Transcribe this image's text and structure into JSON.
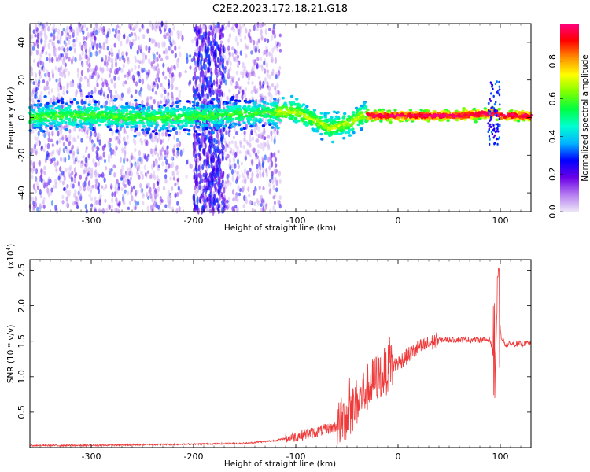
{
  "title": "C2E2.2023.172.18.21.G18",
  "chart_data": [
    {
      "type": "heatmap",
      "xlabel": "Height of straight line (km)",
      "ylabel": "Frequency (Hz)",
      "xlim": [
        -360,
        130
      ],
      "ylim": [
        -50,
        50
      ],
      "x_ticks": [
        -300,
        -200,
        -100,
        0,
        100
      ],
      "y_ticks": [
        -40,
        -20,
        0,
        20,
        40
      ],
      "colorbar": {
        "label": "Normalized spectral amplitude",
        "range": [
          0.0,
          1.0
        ],
        "ticks": [
          "0.0",
          "0.2",
          "0.4",
          "0.6",
          "0.8"
        ],
        "stops": [
          "#ece6f7",
          "#b57bf0",
          "#6a00e8",
          "#0000ff",
          "#00b4ff",
          "#00ffd0",
          "#00ff40",
          "#80ff00",
          "#ffff00",
          "#ff9000",
          "#ff0000",
          "#ff0080"
        ]
      },
      "ridge": {
        "x": [
          -360,
          -340,
          -300,
          -250,
          -215,
          -180,
          -150,
          -120,
          -100,
          -80,
          -65,
          -55,
          -45,
          -35,
          -20,
          0,
          20,
          60,
          80,
          95,
          100,
          130
        ],
        "y": [
          0,
          1,
          1,
          0,
          0,
          1,
          2,
          3,
          3,
          -2,
          -6,
          -4,
          -2,
          1,
          1,
          1,
          1,
          1,
          2,
          2,
          1,
          1
        ]
      }
    },
    {
      "type": "line",
      "xlabel": "Height of straight line (km)",
      "ylabel": "SNR (10 * v/v)",
      "y_multiplier": "(x10",
      "y_multiplier_exp": "4",
      "y_multiplier_close": ")",
      "xlim": [
        -360,
        130
      ],
      "ylim": [
        0,
        2.65
      ],
      "x_ticks": [
        -300,
        -200,
        -100,
        0,
        100
      ],
      "y_ticks": [
        0.5,
        1.0,
        1.5,
        2.0,
        2.5
      ],
      "y_tick_labels": [
        "0.5",
        "1.0",
        "1.5",
        "2.0",
        "2.5"
      ],
      "series": [
        {
          "color": "#ee3a3a",
          "envelope_x": [
            -360,
            -300,
            -200,
            -150,
            -120,
            -100,
            -80,
            -60,
            -50,
            -40,
            -30,
            -20,
            -10,
            0,
            20,
            40,
            60,
            80,
            90,
            95,
            100,
            105,
            110,
            130
          ],
          "envelope_y": [
            0.03,
            0.03,
            0.05,
            0.06,
            0.1,
            0.16,
            0.22,
            0.3,
            0.45,
            0.65,
            0.85,
            1.0,
            1.1,
            1.2,
            1.4,
            1.52,
            1.52,
            1.52,
            1.52,
            1.2,
            1.6,
            1.45,
            1.46,
            1.47
          ]
        }
      ]
    }
  ]
}
